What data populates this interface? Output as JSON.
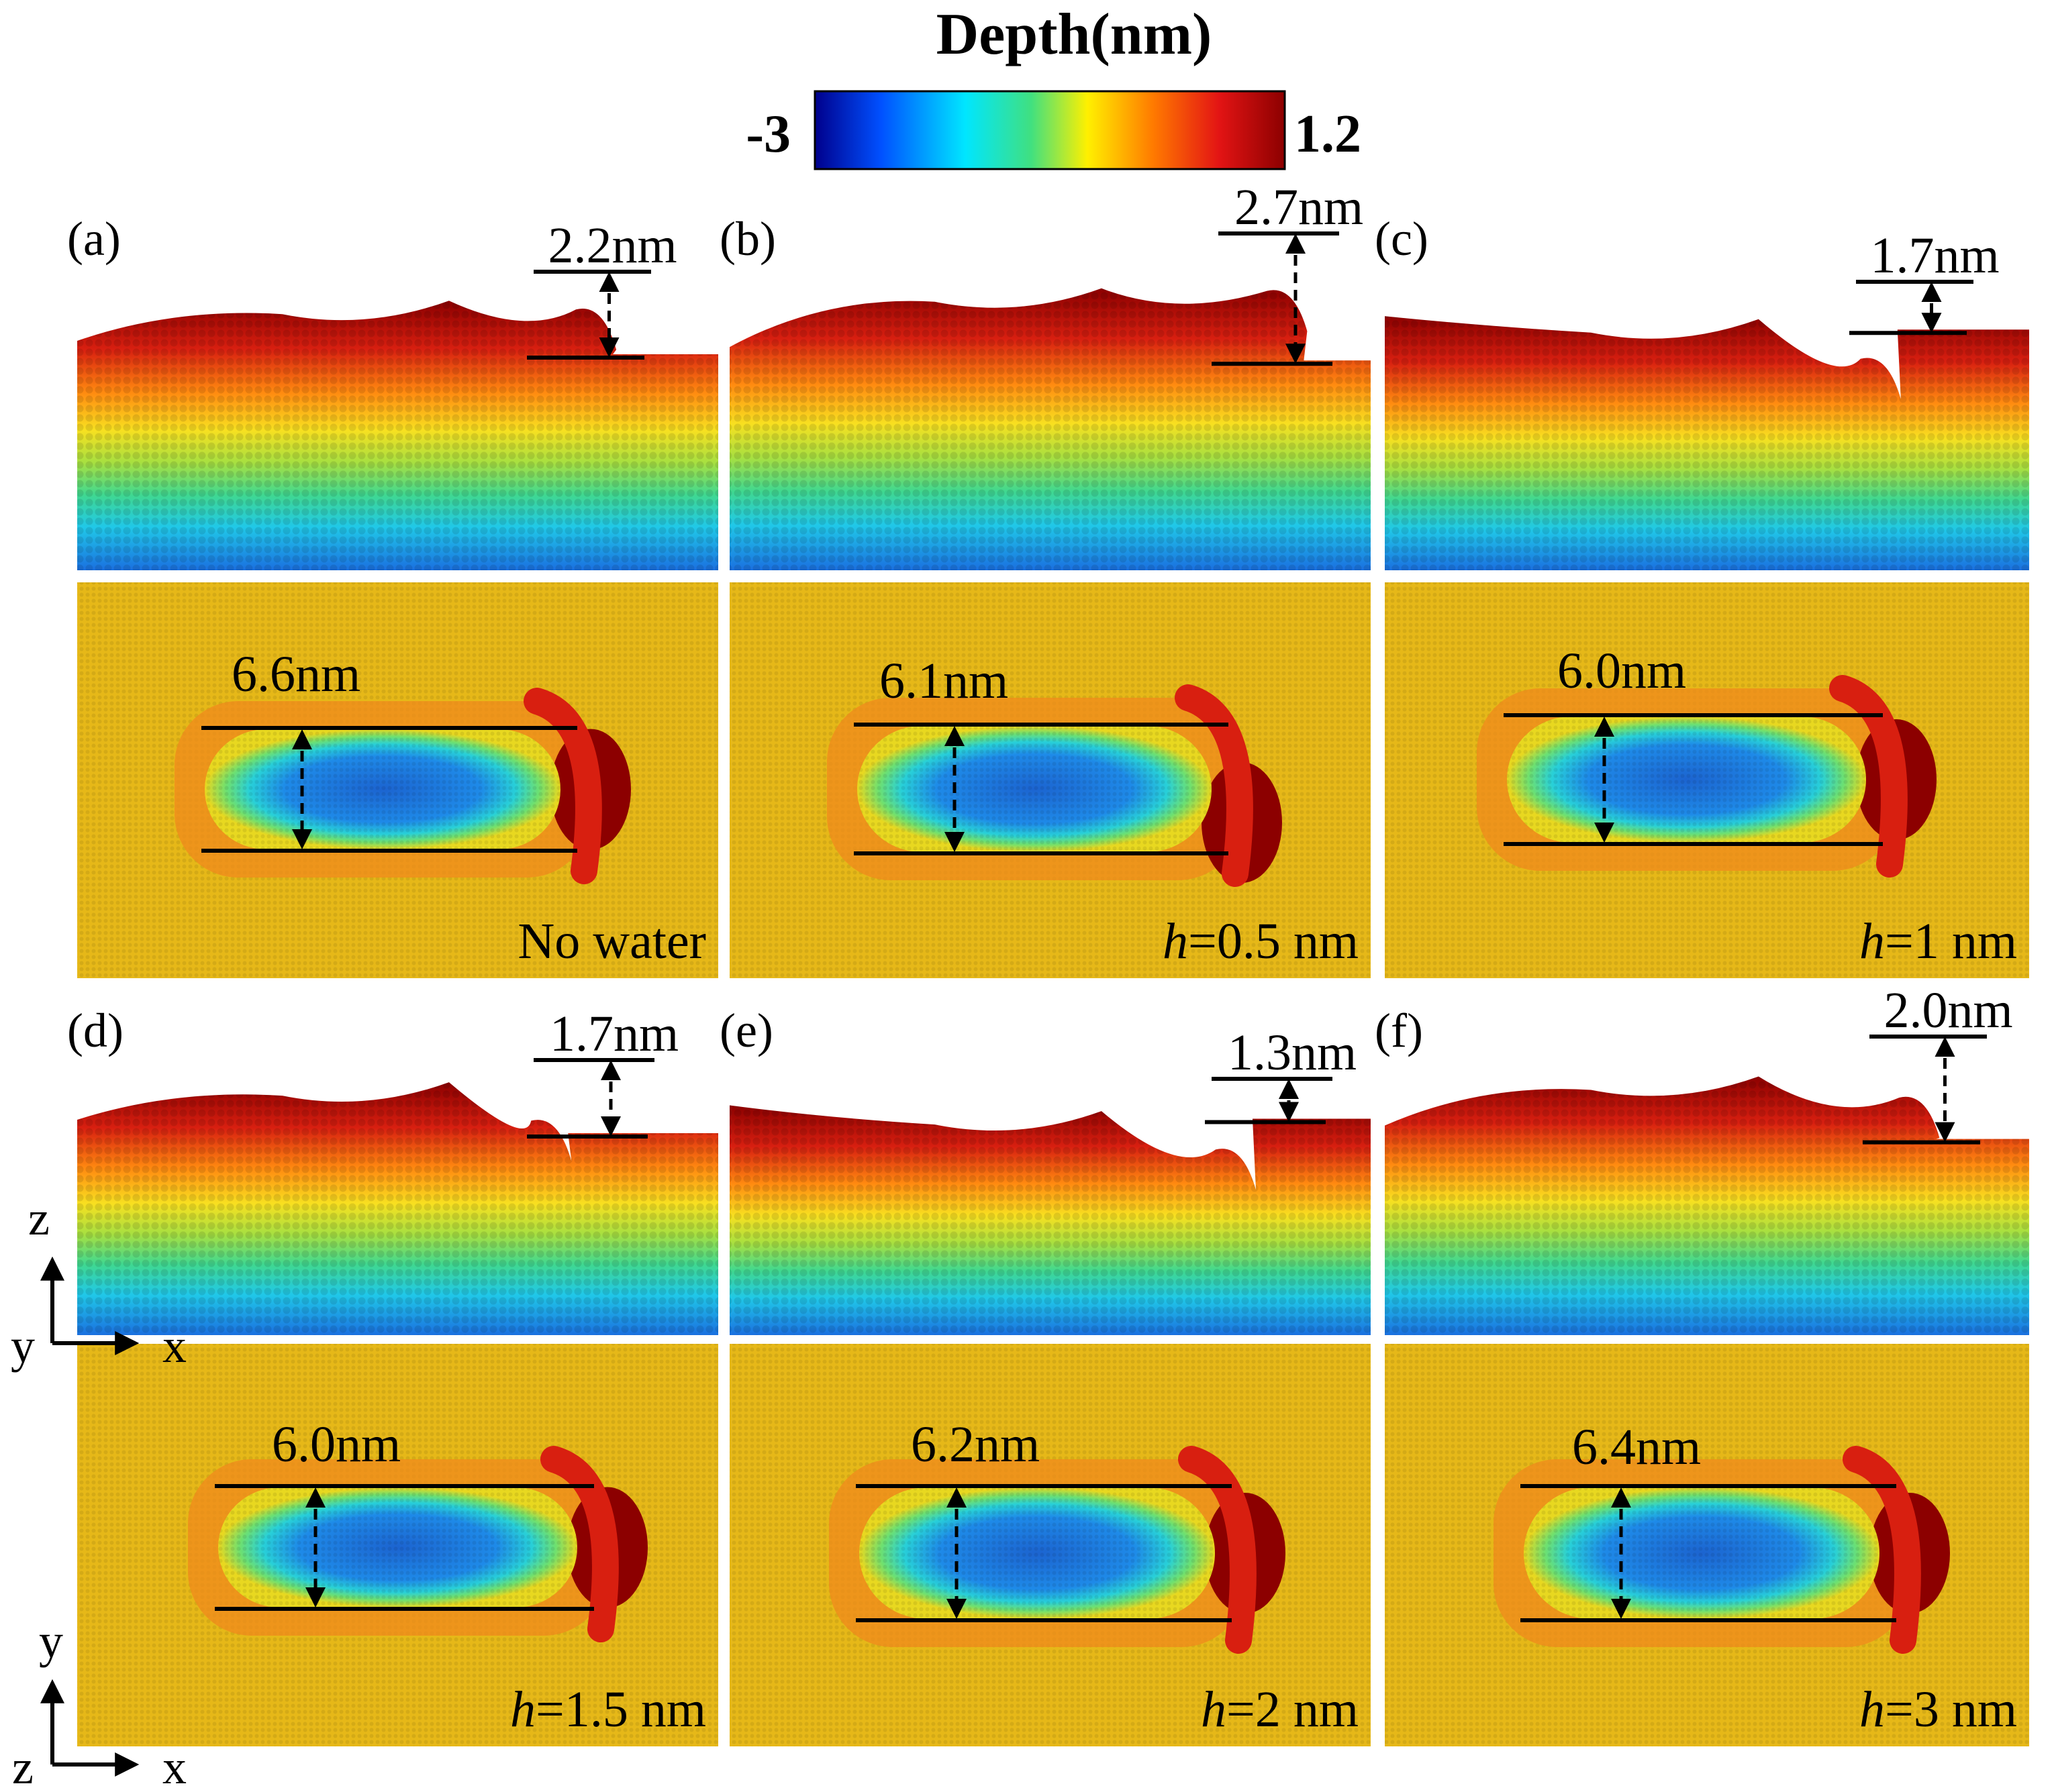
{
  "colorbar": {
    "title": "Depth(nm)",
    "min_label": "-3",
    "max_label": "1.2",
    "min": -3,
    "max": 1.2,
    "colors": [
      "#00008c",
      "#0050ff",
      "#00e6ff",
      "#40e080",
      "#fff000",
      "#ff7a00",
      "#e31414",
      "#8c0000"
    ]
  },
  "panels": [
    {
      "id": "(a)",
      "pile_height": "2.2nm",
      "groove_width": "6.6nm",
      "condition": "No water"
    },
    {
      "id": "(b)",
      "pile_height": "2.7nm",
      "groove_width": "6.1nm",
      "condition": "h=0.5 nm",
      "condition_var": "h",
      "condition_rest": "=0.5 nm"
    },
    {
      "id": "(c)",
      "pile_height": "1.7nm",
      "groove_width": "6.0nm",
      "condition": "h=1 nm",
      "condition_var": "h",
      "condition_rest": "=1 nm"
    },
    {
      "id": "(d)",
      "pile_height": "1.7nm",
      "groove_width": "6.0nm",
      "condition": "h=1.5 nm",
      "condition_var": "h",
      "condition_rest": "=1.5 nm"
    },
    {
      "id": "(e)",
      "pile_height": "1.3nm",
      "groove_width": "6.2nm",
      "condition": "h=2 nm",
      "condition_var": "h",
      "condition_rest": "=2 nm"
    },
    {
      "id": "(f)",
      "pile_height": "2.0nm",
      "groove_width": "6.4nm",
      "condition": "h=3 nm",
      "condition_var": "h",
      "condition_rest": "=3 nm"
    }
  ],
  "axes": {
    "side_view": {
      "up": "z",
      "right": "x",
      "corner": "y"
    },
    "top_view": {
      "up": "y",
      "right": "x",
      "corner": "z"
    }
  }
}
